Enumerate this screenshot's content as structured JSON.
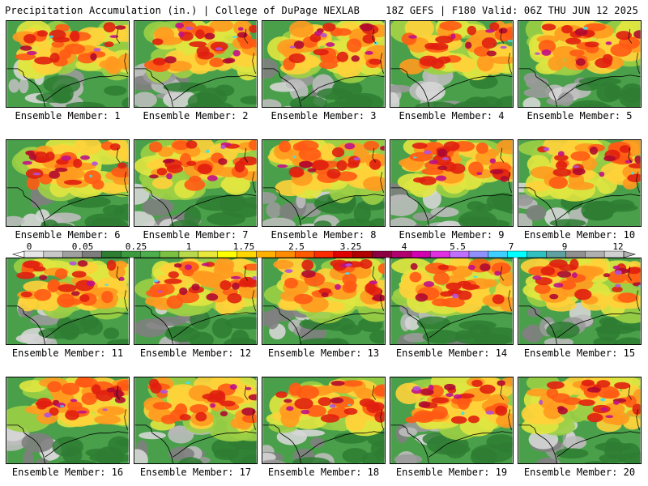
{
  "header": {
    "title": "Precipitation Accumulation (in.) | College of DuPage NEXLAB",
    "run_info": "18Z GEFS | F180 Valid: 06Z THU JUN 12 2025"
  },
  "members": [
    "Ensemble Member: 1",
    "Ensemble Member: 2",
    "Ensemble Member: 3",
    "Ensemble Member: 4",
    "Ensemble Member: 5",
    "Ensemble Member: 6",
    "Ensemble Member: 7",
    "Ensemble Member: 8",
    "Ensemble Member: 9",
    "Ensemble Member: 10",
    "Ensemble Member: 11",
    "Ensemble Member: 12",
    "Ensemble Member: 13",
    "Ensemble Member: 14",
    "Ensemble Member: 15",
    "Ensemble Member: 16",
    "Ensemble Member: 17",
    "Ensemble Member: 18",
    "Ensemble Member: 19",
    "Ensemble Member: 20"
  ],
  "legend": {
    "tick_labels": [
      "0",
      "0.05",
      "0.25",
      "1",
      "1.75",
      "2.5",
      "3.25",
      "4",
      "5.5",
      "7",
      "9",
      "12"
    ],
    "colors": [
      "#e6e6e6",
      "#c8c8c8",
      "#a0a0a0",
      "#7d7d7d",
      "#2e7d32",
      "#3b9a3b",
      "#4cae4c",
      "#7ac142",
      "#b8d94a",
      "#e8e83a",
      "#ffff00",
      "#ffd700",
      "#ffb000",
      "#ff8c00",
      "#ff5a00",
      "#ff2a00",
      "#e00000",
      "#b00000",
      "#8b0040",
      "#b0006e",
      "#d000b0",
      "#e030e0",
      "#c070ff",
      "#9090ff",
      "#40d0ff",
      "#00ffff",
      "#30c0c0",
      "#60a0a0",
      "#909090",
      "#b0b0b0",
      "#d0d0d0"
    ]
  },
  "colors": {
    "border": "#000000",
    "background": "#ffffff"
  }
}
